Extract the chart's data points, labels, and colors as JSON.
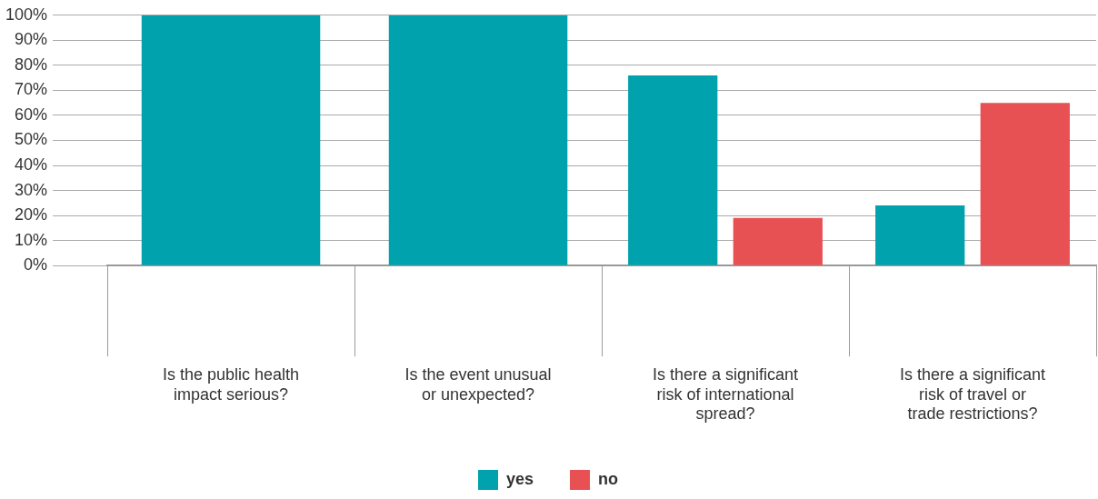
{
  "chart_data": {
    "type": "bar",
    "categories": [
      "Is the public health impact serious?",
      "Is the event unusual or unexpected?",
      "Is there a significant risk of international spread?",
      "Is there a significant risk of travel or trade restrictions?"
    ],
    "series": [
      {
        "name": "yes",
        "color": "#00a3ad",
        "values": [
          100,
          100,
          76,
          24
        ]
      },
      {
        "name": "no",
        "color": "#e85153",
        "values": [
          null,
          null,
          19,
          65
        ]
      }
    ],
    "ylim": [
      0,
      100
    ],
    "yticks": [
      {
        "value": 0,
        "label": "0%"
      },
      {
        "value": 10,
        "label": "10%"
      },
      {
        "value": 20,
        "label": "20%"
      },
      {
        "value": 30,
        "label": "30%"
      },
      {
        "value": 40,
        "label": "40%"
      },
      {
        "value": 50,
        "label": "50%"
      },
      {
        "value": 60,
        "label": "60%"
      },
      {
        "value": 70,
        "label": "70%"
      },
      {
        "value": 80,
        "label": "80%"
      },
      {
        "value": 90,
        "label": "90%"
      },
      {
        "value": 100,
        "label": "100%"
      }
    ],
    "grid": "y",
    "legend": "bottom"
  }
}
